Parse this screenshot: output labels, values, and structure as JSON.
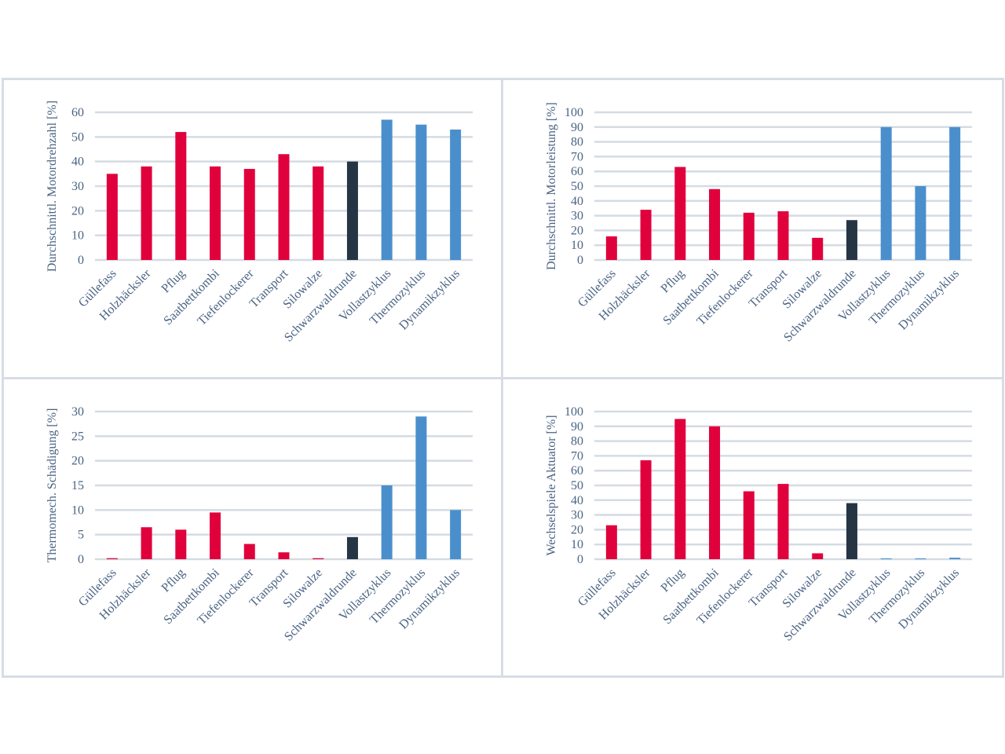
{
  "colors": {
    "red": "#e0003c",
    "dark": "#263544",
    "blue": "#4a8fcc",
    "grid": "#d5dbe3",
    "text": "#4a6383",
    "border": "#d6dde6"
  },
  "chart_data": [
    {
      "type": "bar",
      "title": "",
      "xlabel": "",
      "ylabel": "Durchschnittl. Motordrehzahl [%]",
      "ylim": [
        0,
        60
      ],
      "yticks": [
        0,
        10,
        20,
        30,
        40,
        50,
        60
      ],
      "categories": [
        "Güllefass",
        "Holzhäcksler",
        "Pflug",
        "Saatbettkombi",
        "Tiefenlockerer",
        "Transport",
        "Silowalze",
        "Schwarzwaldrunde",
        "Vollastzyklus",
        "Thermozyklus",
        "Dynamikzyklus"
      ],
      "values": [
        35,
        38,
        52,
        38,
        37,
        43,
        38,
        40,
        57,
        55,
        53
      ],
      "bar_colors": [
        "red",
        "red",
        "red",
        "red",
        "red",
        "red",
        "red",
        "dark",
        "blue",
        "blue",
        "blue"
      ]
    },
    {
      "type": "bar",
      "title": "",
      "xlabel": "",
      "ylabel": "Durchschnittl. Motorleistung [%]",
      "ylim": [
        0,
        100
      ],
      "yticks": [
        0,
        10,
        20,
        30,
        40,
        50,
        60,
        70,
        80,
        90,
        100
      ],
      "categories": [
        "Güllefass",
        "Holzhäcksler",
        "Pflug",
        "Saatbettkombi",
        "Tiefenlockerer",
        "Transport",
        "Silowalze",
        "Schwarzwaldrunde",
        "Vollastzyklus",
        "Thermozyklus",
        "Dynamikzyklus"
      ],
      "values": [
        16,
        34,
        63,
        48,
        32,
        33,
        15,
        27,
        90,
        50,
        90
      ],
      "bar_colors": [
        "red",
        "red",
        "red",
        "red",
        "red",
        "red",
        "red",
        "dark",
        "blue",
        "blue",
        "blue"
      ]
    },
    {
      "type": "bar",
      "title": "",
      "xlabel": "",
      "ylabel": "Thermomech. Schädigung [%]",
      "ylim": [
        0,
        30
      ],
      "yticks": [
        0,
        5,
        10,
        15,
        20,
        25,
        30
      ],
      "categories": [
        "Güllefass",
        "Holzhäcksler",
        "Pflug",
        "Saatbettkombi",
        "Tiefenlockerer",
        "Transport",
        "Silowalze",
        "Schwarzwaldrunde",
        "Vollastzyklus",
        "Thermozyklus",
        "Dynamikzyklus"
      ],
      "values": [
        0.2,
        6.5,
        6,
        9.5,
        3.1,
        1.4,
        0.2,
        4.5,
        15,
        29,
        10
      ],
      "bar_colors": [
        "red",
        "red",
        "red",
        "red",
        "red",
        "red",
        "red",
        "dark",
        "blue",
        "blue",
        "blue"
      ]
    },
    {
      "type": "bar",
      "title": "",
      "xlabel": "",
      "ylabel": "Wechselspiele Aktuator [%]",
      "ylim": [
        0,
        100
      ],
      "yticks": [
        0,
        10,
        20,
        30,
        40,
        50,
        60,
        70,
        80,
        90,
        100
      ],
      "categories": [
        "Güllefass",
        "Holzhäcksler",
        "Pflug",
        "Saatbettkombi",
        "Tiefenlockerer",
        "Transport",
        "Silowalze",
        "Schwarzwaldrunde",
        "Vollastzyklus",
        "Thermozyklus",
        "Dynamikzyklus"
      ],
      "values": [
        23,
        67,
        95,
        90,
        46,
        51,
        4,
        38,
        0,
        0,
        1
      ],
      "bar_colors": [
        "red",
        "red",
        "red",
        "red",
        "red",
        "red",
        "red",
        "dark",
        "blue",
        "blue",
        "blue"
      ]
    }
  ]
}
